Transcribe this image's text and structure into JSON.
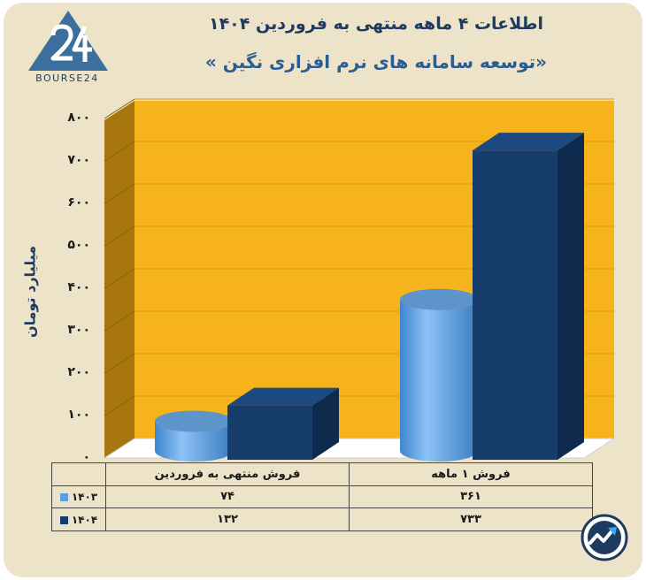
{
  "header": {
    "title": "اطلاعات ۴ ماهه منتهی به فروردین ۱۴۰۴",
    "subtitle": "«توسعه سامانه های نرم افزاری نگین »",
    "brand": "BOURSE24",
    "logo_icon": "bourse24-logo-icon",
    "badge_icon": "trend-arrow-badge-icon"
  },
  "colors": {
    "wall": "#f7b31c",
    "wall_side": "#a8760f",
    "series_1403": "#5a9fe3",
    "series_1404": "#163d6b",
    "text_dark": "#1d3a5f"
  },
  "chart_data": {
    "type": "bar",
    "ylabel": "میلیارد تومان",
    "ylim": [
      0,
      800
    ],
    "yticks": [
      "۰",
      "۱۰۰",
      "۲۰۰",
      "۳۰۰",
      "۴۰۰",
      "۵۰۰",
      "۶۰۰",
      "۷۰۰",
      "۸۰۰"
    ],
    "categories": [
      "فروش منتهی به  فروردین",
      "فروش ۱  ماهه"
    ],
    "series": [
      {
        "name": "۱۴۰۳",
        "values": [
          74,
          361
        ],
        "labels": [
          "۷۴",
          "۳۶۱"
        ],
        "shape": "cylinder"
      },
      {
        "name": "۱۴۰۴",
        "values": [
          132,
          733
        ],
        "labels": [
          "۱۳۲",
          "۷۳۳"
        ],
        "shape": "box"
      }
    ]
  }
}
